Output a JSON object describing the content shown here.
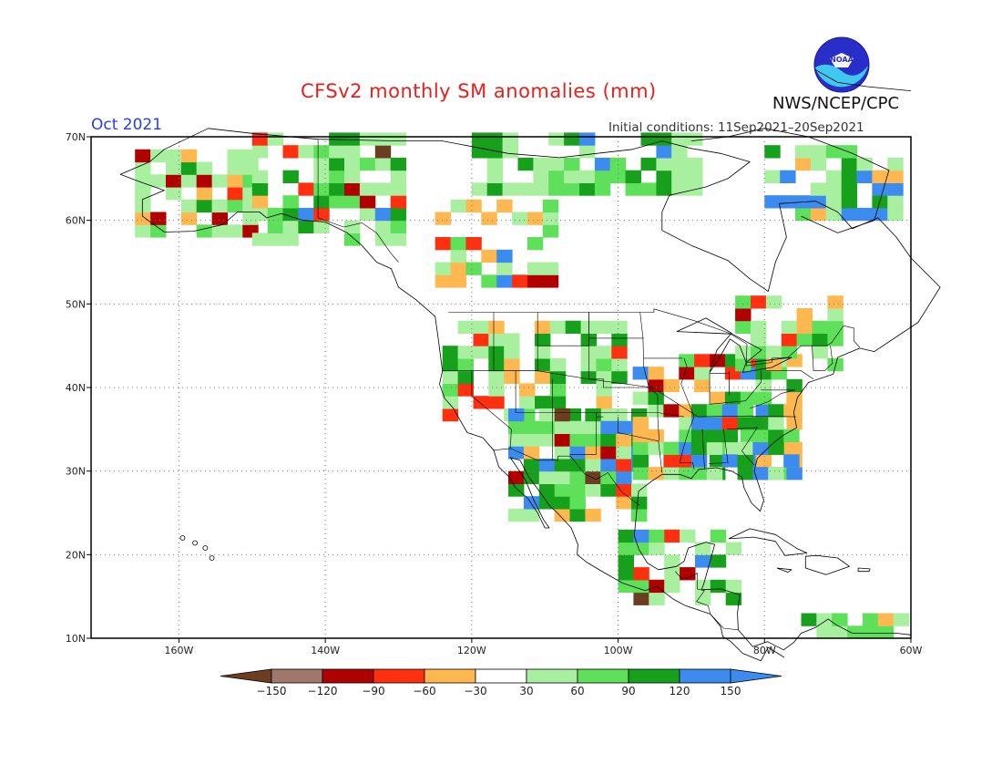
{
  "title": "CFSv2 monthly SM anomalies (mm)",
  "period": "Oct 2021",
  "initial_conditions": "Initial conditions: 11Sep2021–20Sep2021",
  "agency": "NWS/NCEP/CPC",
  "logo_text": "NOAA",
  "map": {
    "lon_range": [
      -172,
      -60
    ],
    "lat_range": [
      10,
      70
    ],
    "lon_ticks": [
      "160W",
      "140W",
      "120W",
      "100W",
      "80W",
      "60W"
    ],
    "lat_ticks": [
      "70N",
      "60N",
      "50N",
      "40N",
      "30N",
      "20N",
      "10N"
    ],
    "grid_lines": "dotted"
  },
  "colorbar": {
    "ticks": [
      "−150",
      "−120",
      "−90",
      "−60",
      "−30",
      "30",
      "60",
      "90",
      "120",
      "150"
    ],
    "colors": [
      "#6b3e22",
      "#a0776a",
      "#b00000",
      "#ff3010",
      "#ffb850",
      "#ffffff",
      "#a8f0a0",
      "#5ee05a",
      "#16a01c",
      "#3c8cf0",
      "#3c8cf0"
    ]
  },
  "colors": {
    "title": "#e8201b",
    "period": "#2a3fd8",
    "coast": "#000000"
  }
}
